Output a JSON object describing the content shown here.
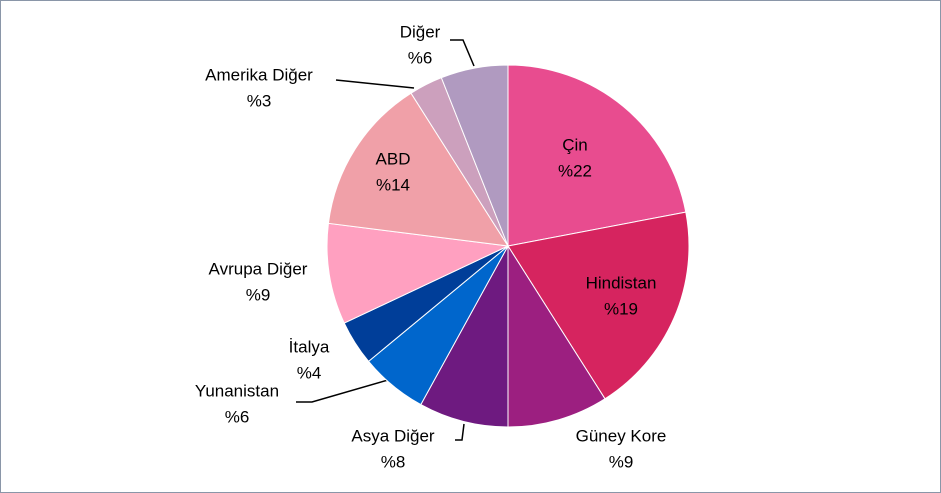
{
  "chart_data": {
    "type": "pie",
    "categories": [
      "Çin",
      "Hindistan",
      "Güney Kore",
      "Asya Diğer",
      "Yunanistan",
      "İtalya",
      "Avrupa Diğer",
      "ABD",
      "Amerika Diğer",
      "Diğer"
    ],
    "values": [
      22,
      19,
      9,
      8,
      6,
      4,
      9,
      14,
      3,
      6
    ],
    "value_labels": [
      "%22",
      "%19",
      "%9",
      "%8",
      "%6",
      "%4",
      "%9",
      "%14",
      "%3",
      "%6"
    ],
    "colors": [
      "#e84c8f",
      "#d6245f",
      "#9c1f80",
      "#6e1a80",
      "#0066cc",
      "#003e99",
      "#ffa0c0",
      "#f0a0a8",
      "#cca0bd",
      "#b09ac0"
    ]
  }
}
